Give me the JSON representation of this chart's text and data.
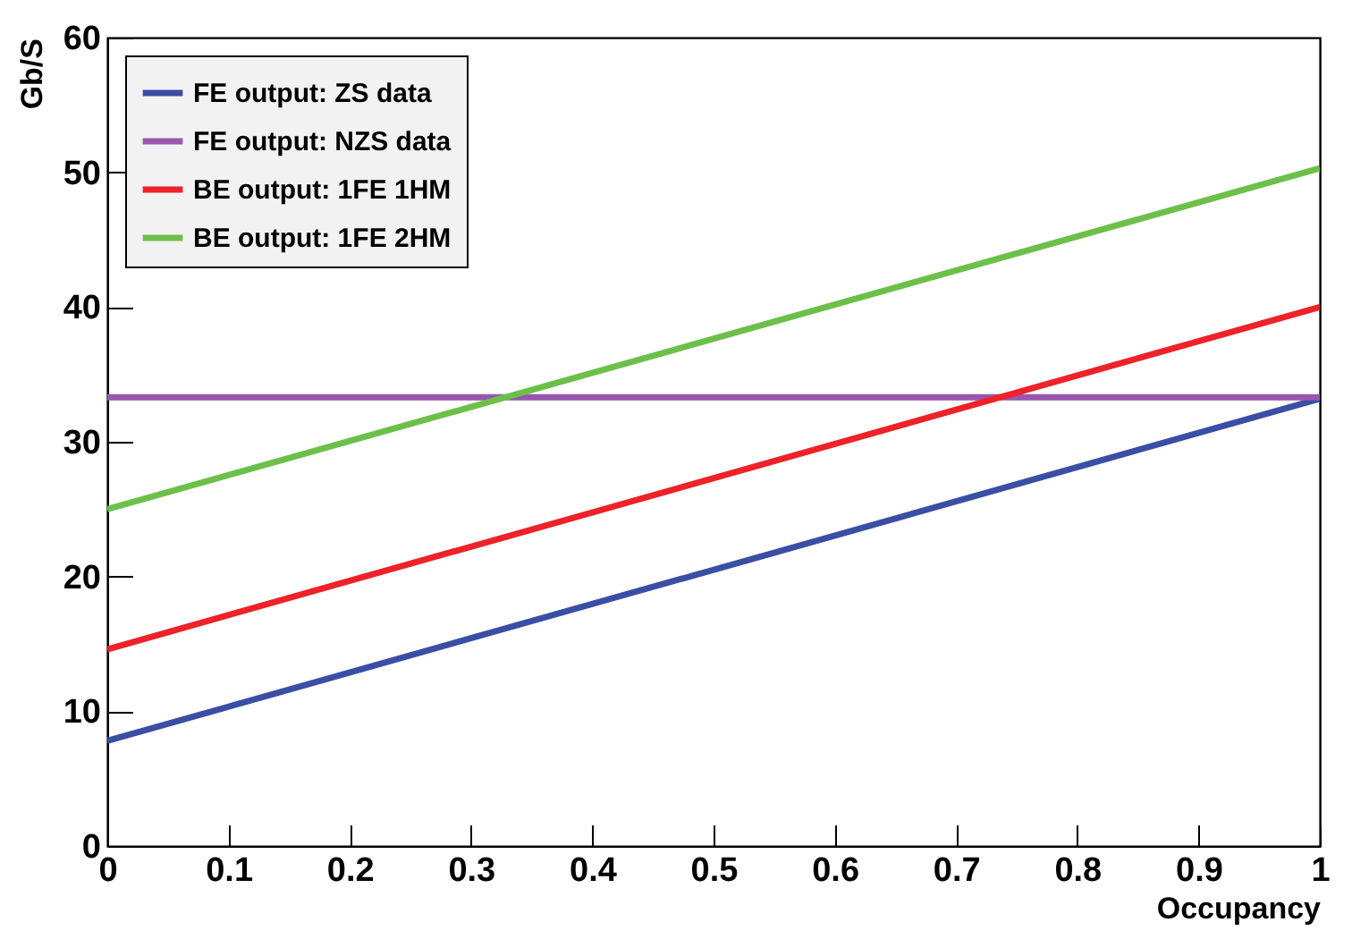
{
  "chart_data": {
    "type": "line",
    "xlabel": "Occupancy",
    "ylabel": "Gb/S",
    "xlim": [
      0,
      1
    ],
    "xticks": [
      0,
      0.1,
      0.2,
      0.3,
      0.4,
      0.5,
      0.6,
      0.7,
      0.8,
      0.9,
      1
    ],
    "ylim": [
      0,
      60
    ],
    "yticks": [
      0,
      10,
      20,
      30,
      40,
      50,
      60
    ],
    "grid": false,
    "legend": "top left",
    "marker": "none",
    "line_style": "solid",
    "x": [
      0,
      1
    ],
    "series": [
      {
        "name": "FE output: ZS data",
        "color": "#3a4fa3",
        "values": [
          7.8,
          33.2
        ]
      },
      {
        "name": "FE output: NZS data",
        "color": "#9955b0",
        "values": [
          33.3,
          33.3
        ]
      },
      {
        "name": "BE output: 1FE 1HM",
        "color": "#ee2228",
        "values": [
          14.6,
          40.0
        ]
      },
      {
        "name": "BE output: 1FE 2HM",
        "color": "#6cc04a",
        "values": [
          25.0,
          50.3
        ]
      }
    ]
  }
}
